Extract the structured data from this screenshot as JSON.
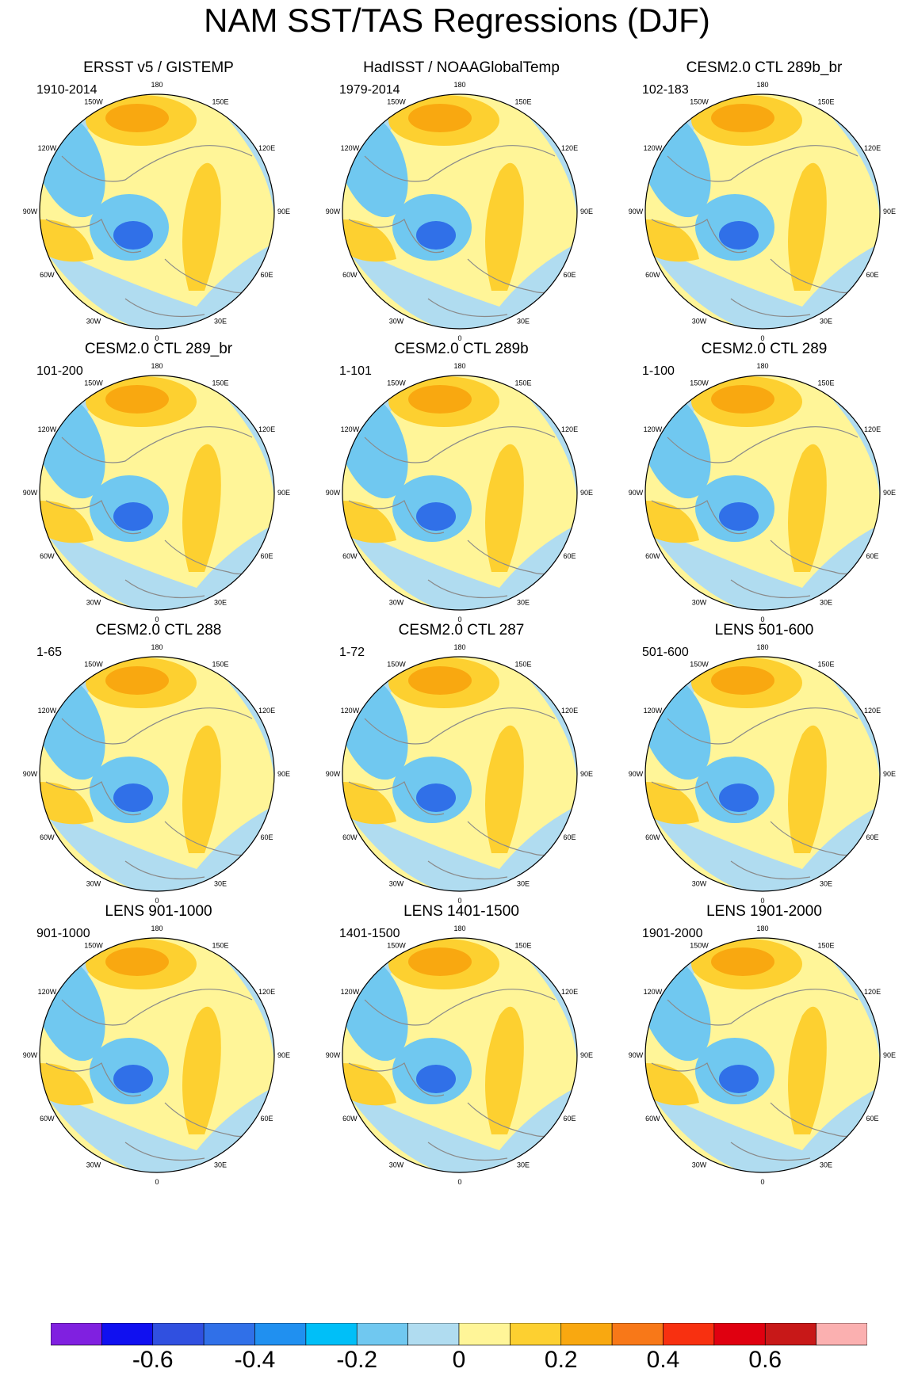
{
  "title": "NAM SST/TAS Regressions (DJF)",
  "panels": [
    {
      "title": "ERSST v5 / GISTEMP",
      "period": "1910-2014"
    },
    {
      "title": "HadISST / NOAAGlobalTemp",
      "period": "1979-2014"
    },
    {
      "title": "CESM2.0 CTL 289b_br",
      "period": "102-183"
    },
    {
      "title": "CESM2.0 CTL 289_br",
      "period": "101-200"
    },
    {
      "title": "CESM2.0 CTL 289b",
      "period": "1-101"
    },
    {
      "title": "CESM2.0 CTL 289",
      "period": "1-100"
    },
    {
      "title": "CESM2.0 CTL 288",
      "period": "1-65"
    },
    {
      "title": "CESM2.0 CTL 287",
      "period": "1-72"
    },
    {
      "title": "LENS 501-600",
      "period": "501-600"
    },
    {
      "title": "LENS 901-1000",
      "period": "901-1000"
    },
    {
      "title": "LENS 1401-1500",
      "period": "1401-1500"
    },
    {
      "title": "LENS 1901-2000",
      "period": "1901-2000"
    }
  ],
  "longitude_labels": [
    "180",
    "150E",
    "120E",
    "90E",
    "60E",
    "30E",
    "0",
    "30W",
    "60W",
    "90W",
    "120W",
    "150W"
  ],
  "colorbar": {
    "colors": [
      "#8020e0",
      "#1010f0",
      "#3050e0",
      "#3070e8",
      "#2090f0",
      "#00bff8",
      "#70c8f0",
      "#b0dcf0",
      "#fff598",
      "#fdd030",
      "#f9a810",
      "#f87818",
      "#f83010",
      "#e00010",
      "#c81818",
      "#fbb0b0"
    ],
    "tick_labels": [
      "-0.6",
      "-0.4",
      "-0.2",
      "0",
      "0.2",
      "0.4",
      "0.6"
    ]
  }
}
